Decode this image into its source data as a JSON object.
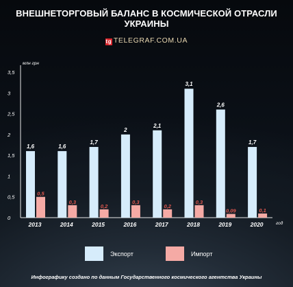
{
  "header": {
    "title": "ВНЕШНЕТОРГОВЫЙ БАЛАНС В КОСМИЧЕСКОЙ ОТРАСЛИ УКРАИНЫ",
    "source": "TELEGRAF.COM.UA",
    "source_logo": "tg"
  },
  "footer": {
    "note": "Инфографику создано по данным Государственного космического агентства Украины"
  },
  "colors": {
    "export": "#d6ecfb",
    "import": "#f5aaa5",
    "import_label": "#e2584f",
    "background": "#0c1118"
  },
  "chart_data": {
    "type": "bar",
    "title": "ВНЕШНЕТОРГОВЫЙ БАЛАНС В КОСМИЧЕСКОЙ ОТРАСЛИ УКРАИНЫ",
    "ylabel": "млн грн",
    "xlabel": "год",
    "ylim": [
      0,
      3.5
    ],
    "yticks": [
      "0",
      "0,5",
      "1",
      "1,5",
      "2",
      "2,5",
      "3",
      "3,5"
    ],
    "grid": false,
    "legend": "bottom",
    "categories": [
      "2013",
      "2014",
      "2015",
      "2016",
      "2017",
      "2018",
      "2019",
      "2020"
    ],
    "series": [
      {
        "name": "Экспорт",
        "values": [
          1.6,
          1.6,
          1.7,
          2,
          2.1,
          3.1,
          2.6,
          1.7
        ],
        "labels": [
          "1,6",
          "1,6",
          "1,7",
          "2",
          "2,1",
          "3,1",
          "2,6",
          "1,7"
        ]
      },
      {
        "name": "Импорт",
        "values": [
          0.5,
          0.3,
          0.2,
          0.3,
          0.2,
          0.3,
          0.09,
          0.1
        ],
        "labels": [
          "0,5",
          "0,3",
          "0,2",
          "0,3",
          "0,2",
          "0,3",
          "0,09",
          "0,1"
        ]
      }
    ]
  }
}
